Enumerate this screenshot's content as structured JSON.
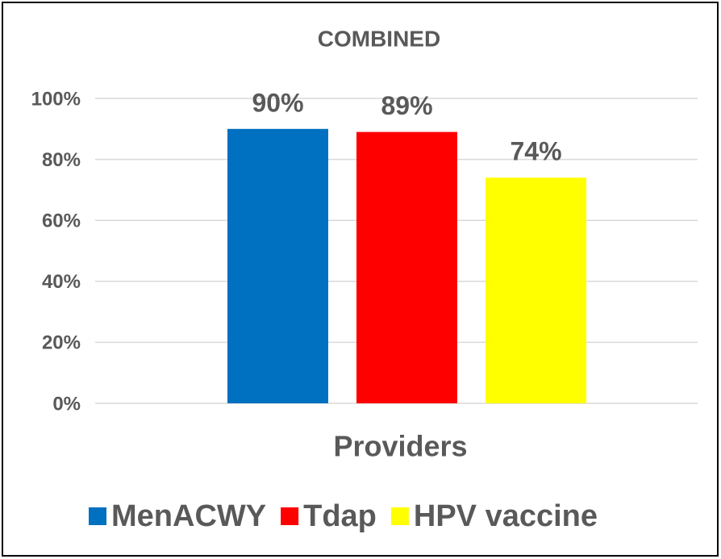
{
  "chart_data": {
    "type": "bar",
    "title": "COMBINED",
    "categories": [
      "Providers"
    ],
    "series": [
      {
        "name": "MenACWY",
        "color": "#0070c0",
        "values": [
          90
        ],
        "value_labels": [
          "90%"
        ]
      },
      {
        "name": "Tdap",
        "color": "#ff0000",
        "values": [
          89
        ],
        "value_labels": [
          "89%"
        ]
      },
      {
        "name": "HPV vaccine",
        "color": "#ffff00",
        "values": [
          74
        ],
        "value_labels": [
          "74%"
        ]
      }
    ],
    "ylim": [
      0,
      100
    ],
    "yticks": [
      {
        "value": 0,
        "label": "0%"
      },
      {
        "value": 20,
        "label": "20%"
      },
      {
        "value": 40,
        "label": "40%"
      },
      {
        "value": 60,
        "label": "60%"
      },
      {
        "value": 80,
        "label": "80%"
      },
      {
        "value": 100,
        "label": "100%"
      }
    ],
    "grid": true,
    "legend": "bottom"
  }
}
